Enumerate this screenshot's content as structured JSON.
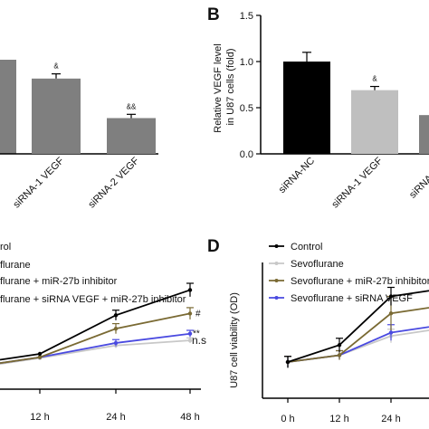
{
  "panel_labels": {
    "b": "B",
    "d": "D"
  },
  "chart_data": [
    {
      "id": "A",
      "type": "bar",
      "categories": [
        "siRNA-1 VEGF",
        "siRNA-2 VEGF"
      ],
      "values": [
        0.8,
        0.38
      ],
      "errors": [
        0.05,
        0.04
      ],
      "sig": [
        "&",
        "&&"
      ],
      "colors": [
        "#7f7f7f",
        "#7f7f7f"
      ]
    },
    {
      "id": "B",
      "type": "bar",
      "categories": [
        "siRNA-NC",
        "siRNA-1 VEGF",
        "siRNA-2 VEGF"
      ],
      "values": [
        1.0,
        0.69,
        0.42
      ],
      "errors": [
        0.1,
        0.04,
        0.04
      ],
      "sig": [
        "",
        "&",
        ""
      ],
      "colors": [
        "#000000",
        "#bfbfbf",
        "#7f7f7f"
      ],
      "ylabel": "Relative VEGF level\nin U87 cells (fold)",
      "yticks": [
        "0.0",
        "0.5",
        "1.0",
        "1.5"
      ],
      "ylim": [
        0,
        1.5
      ]
    },
    {
      "id": "C",
      "type": "line",
      "x": [
        "12 h",
        "24 h",
        "48 h"
      ],
      "legend": [
        "Control",
        "Sevoflurane",
        "Sevoflurane + miR-27b inhibitor",
        "Sevoflurane + siRNA VEGF + miR-27b inhibitor"
      ],
      "colors": [
        "#000000",
        "#c8c8c8",
        "#7a6a33",
        "#4a4ae0"
      ],
      "series": [
        {
          "values": [
            0.42,
            0.88,
            1.18
          ],
          "errors": [
            0,
            0.06,
            0.08
          ]
        },
        {
          "values": [
            0.37,
            0.52,
            0.58
          ],
          "errors": [
            0,
            0.03,
            0.03
          ]
        },
        {
          "values": [
            0.38,
            0.72,
            0.9
          ],
          "errors": [
            0,
            0.06,
            0.07
          ]
        },
        {
          "values": [
            0.38,
            0.55,
            0.66
          ],
          "errors": [
            0,
            0.04,
            0.04
          ]
        }
      ],
      "annotations": {
        "miR": "#",
        "siRNA": "**",
        "sevo": "n.s"
      }
    },
    {
      "id": "D",
      "type": "line",
      "x": [
        "0 h",
        "12 h",
        "24 h"
      ],
      "legend": [
        "Control",
        "Sevoflurane",
        "Sevoflurane + miR-27b inhibitor",
        "Sevoflurane + siRNA VEGF"
      ],
      "colors": [
        "#000000",
        "#c8c8c8",
        "#7a6a33",
        "#4a4ae0"
      ],
      "ylabel": "U87 cell viability (OD)",
      "series": [
        {
          "values": [
            0.32,
            0.47,
            0.9
          ],
          "errors": [
            0.05,
            0.06,
            0.08
          ]
        },
        {
          "values": [
            0.32,
            0.38,
            0.55
          ],
          "errors": [
            0.05,
            0.04,
            0.06
          ]
        },
        {
          "values": [
            0.32,
            0.38,
            0.75
          ],
          "errors": [
            0.05,
            0.04,
            0.15
          ]
        },
        {
          "values": [
            0.32,
            0.38,
            0.58
          ],
          "errors": [
            0.05,
            0.04,
            0.07
          ]
        }
      ]
    }
  ],
  "partial_texts": {
    "c_legend_control": "rol",
    "c_legend_sevo": "flurane",
    "c_legend_mir": "flurane + miR-27b inhibitor",
    "c_legend_sirna": "flurane + siRNA VEGF + miR-27b inhibitor",
    "d_legend_sirna": "Sevoflurane + siRNA VEGF",
    "b_cat3": "siRNA-2 VE"
  }
}
